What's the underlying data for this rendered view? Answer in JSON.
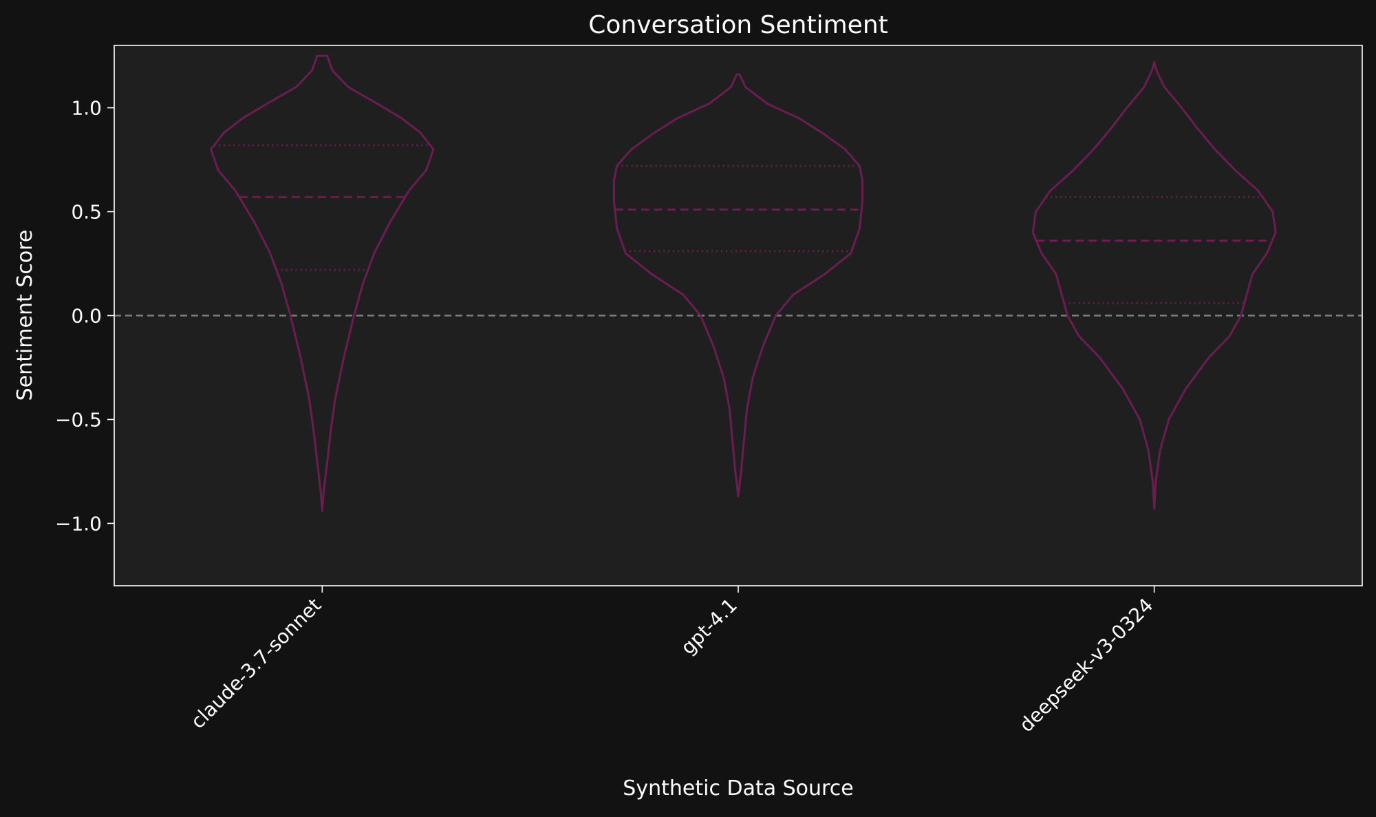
{
  "chart_data": {
    "type": "violin",
    "title": "Conversation Sentiment",
    "xlabel": "Synthetic Data Source",
    "ylabel": "Sentiment Score",
    "ylim": [
      -1.3,
      1.3
    ],
    "yticks": [
      -1.0,
      -0.5,
      0.0,
      0.5,
      1.0
    ],
    "ytick_labels": [
      "−1.0",
      "−0.5",
      "0.0",
      "0.5",
      "1.0"
    ],
    "reference_line": {
      "y": 0.0,
      "style": "dashed"
    },
    "grid": false,
    "legend": "none",
    "colors": {
      "background": "#121212",
      "plot_background": "#1f1f1f",
      "violin": "#6b1d52",
      "reference_line": "#7a7a7a",
      "text": "#ffffff",
      "spine": "#ffffff"
    },
    "categories": [
      "claude-3.7-sonnet",
      "gpt-4.1",
      "deepseek-v3-0324"
    ],
    "violins": [
      {
        "name": "claude-3.7-sonnet",
        "quartiles": {
          "q1": 0.22,
          "median": 0.57,
          "q3": 0.82
        },
        "profile": [
          [
            -0.94,
            0.0
          ],
          [
            -0.85,
            0.01
          ],
          [
            -0.7,
            0.035
          ],
          [
            -0.55,
            0.06
          ],
          [
            -0.4,
            0.09
          ],
          [
            -0.2,
            0.15
          ],
          [
            0.0,
            0.22
          ],
          [
            0.15,
            0.28
          ],
          [
            0.3,
            0.36
          ],
          [
            0.45,
            0.47
          ],
          [
            0.6,
            0.6
          ],
          [
            0.7,
            0.72
          ],
          [
            0.8,
            0.77
          ],
          [
            0.88,
            0.68
          ],
          [
            0.95,
            0.55
          ],
          [
            1.02,
            0.38
          ],
          [
            1.1,
            0.18
          ],
          [
            1.18,
            0.07
          ],
          [
            1.25,
            0.035
          ]
        ]
      },
      {
        "name": "gpt-4.1",
        "quartiles": {
          "q1": 0.31,
          "median": 0.51,
          "q3": 0.72
        },
        "profile": [
          [
            -0.87,
            0.0
          ],
          [
            -0.75,
            0.02
          ],
          [
            -0.6,
            0.04
          ],
          [
            -0.45,
            0.06
          ],
          [
            -0.3,
            0.1
          ],
          [
            -0.15,
            0.17
          ],
          [
            0.0,
            0.26
          ],
          [
            0.1,
            0.38
          ],
          [
            0.2,
            0.6
          ],
          [
            0.3,
            0.78
          ],
          [
            0.42,
            0.84
          ],
          [
            0.55,
            0.86
          ],
          [
            0.65,
            0.86
          ],
          [
            0.72,
            0.84
          ],
          [
            0.8,
            0.74
          ],
          [
            0.88,
            0.58
          ],
          [
            0.95,
            0.42
          ],
          [
            1.02,
            0.2
          ],
          [
            1.1,
            0.05
          ],
          [
            1.16,
            0.01
          ]
        ]
      },
      {
        "name": "deepseek-v3-0324",
        "quartiles": {
          "q1": 0.06,
          "median": 0.36,
          "q3": 0.57
        },
        "profile": [
          [
            -0.93,
            0.0
          ],
          [
            -0.8,
            0.01
          ],
          [
            -0.65,
            0.04
          ],
          [
            -0.5,
            0.1
          ],
          [
            -0.35,
            0.22
          ],
          [
            -0.2,
            0.38
          ],
          [
            -0.1,
            0.52
          ],
          [
            0.0,
            0.6
          ],
          [
            0.1,
            0.64
          ],
          [
            0.2,
            0.68
          ],
          [
            0.3,
            0.78
          ],
          [
            0.4,
            0.84
          ],
          [
            0.5,
            0.82
          ],
          [
            0.6,
            0.72
          ],
          [
            0.7,
            0.56
          ],
          [
            0.8,
            0.42
          ],
          [
            0.9,
            0.3
          ],
          [
            1.0,
            0.19
          ],
          [
            1.1,
            0.07
          ],
          [
            1.18,
            0.015
          ],
          [
            1.22,
            0.0
          ]
        ]
      }
    ]
  }
}
